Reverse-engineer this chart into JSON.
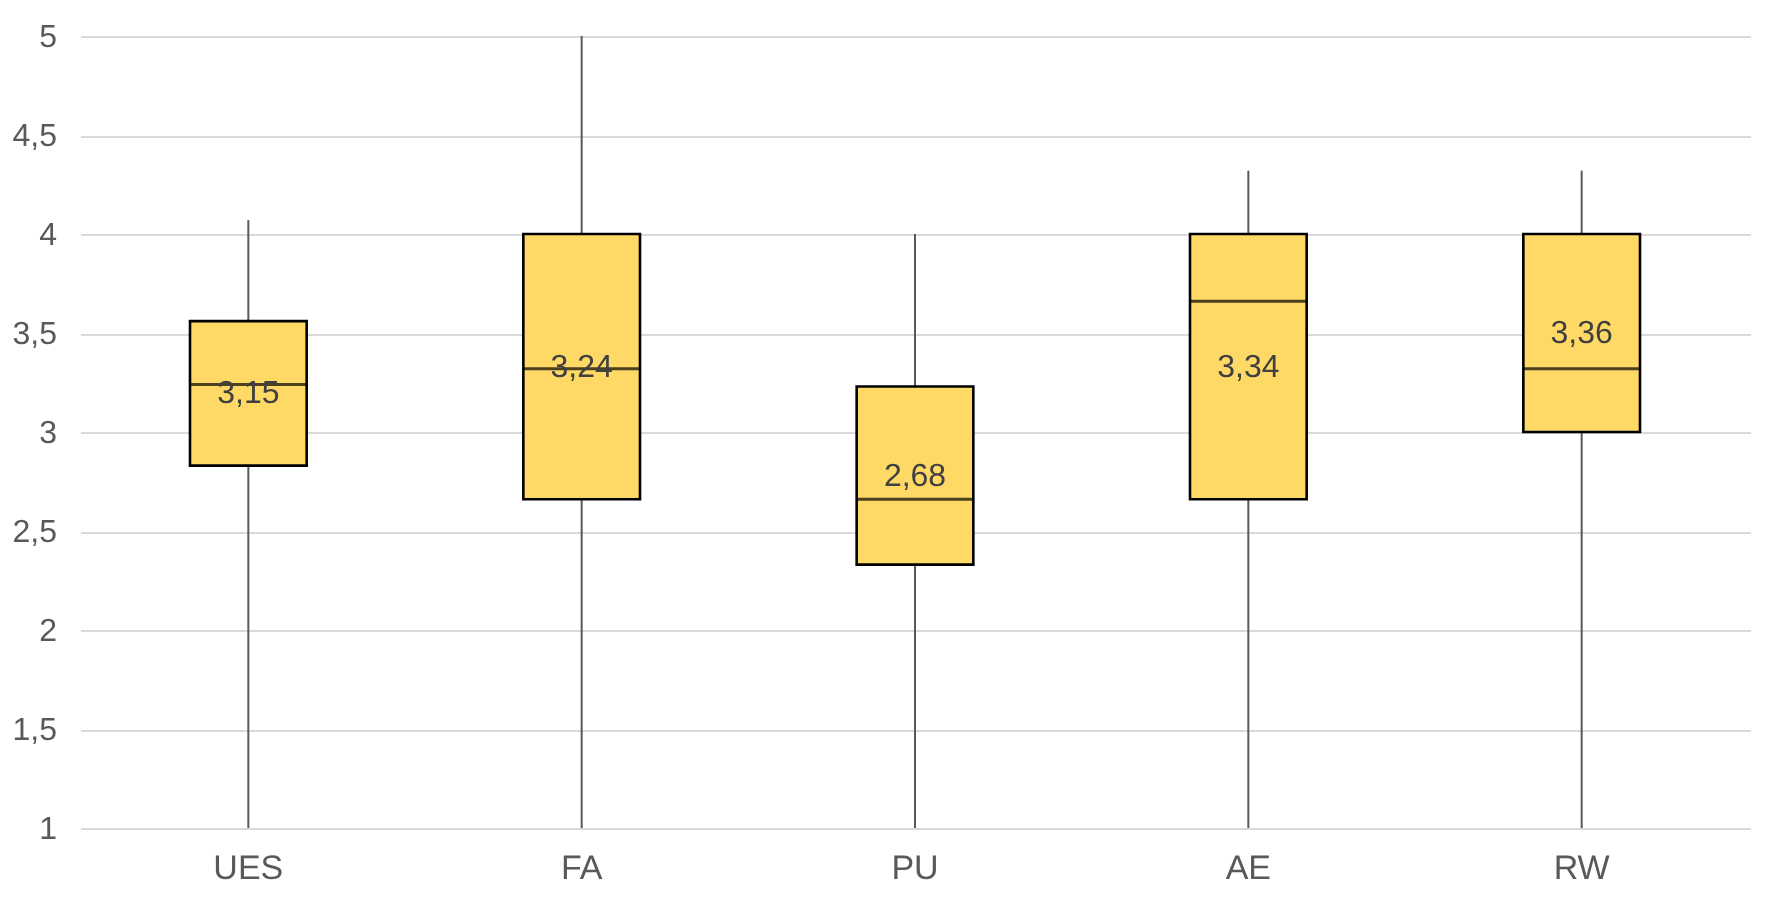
{
  "chart_data": {
    "type": "box",
    "categories": [
      "UES",
      "FA",
      "PU",
      "AE",
      "RW"
    ],
    "boxes": [
      {
        "low": 1,
        "q1": 2.83,
        "median": 3.24,
        "q3": 3.56,
        "high": 4.07
      },
      {
        "low": 1,
        "q1": 2.66,
        "median": 3.32,
        "q3": 4,
        "high": 5
      },
      {
        "low": 1,
        "q1": 2.33,
        "median": 2.66,
        "q3": 3.23,
        "high": 4
      },
      {
        "low": 1,
        "q1": 2.66,
        "median": 3.66,
        "q3": 4,
        "high": 4.32
      },
      {
        "low": 1,
        "q1": 3,
        "median": 3.32,
        "q3": 4,
        "high": 4.32
      }
    ],
    "value_labels": [
      "3,15",
      "3,24",
      "2,68",
      "3,34",
      "3,36"
    ],
    "color": "#ffd966",
    "ylim": [
      1,
      5
    ],
    "yticks": [
      1,
      {
        "value": 1.5,
        "label": "1,5"
      },
      2,
      {
        "value": 2.5,
        "label": "2,5"
      },
      3,
      {
        "value": 3.5,
        "label": "3,5"
      },
      4,
      {
        "value": 4.5,
        "label": "4,5"
      },
      5
    ],
    "grid": "y"
  }
}
